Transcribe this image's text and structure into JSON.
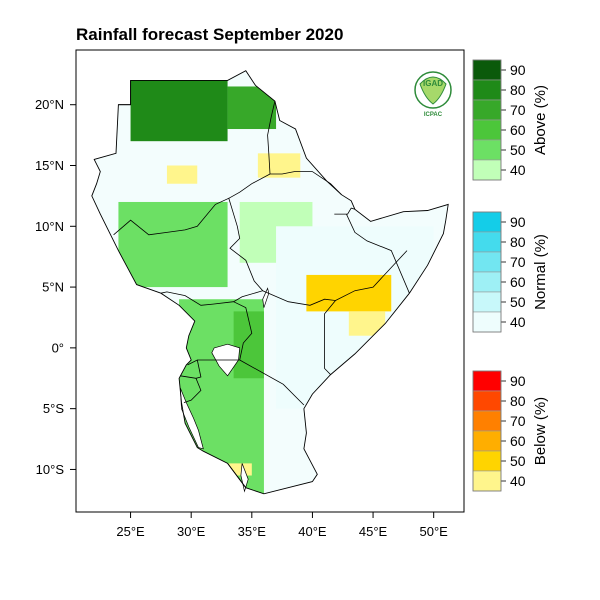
{
  "title": "Rainfall forecast September 2020",
  "logo": {
    "text_main": "IGAD",
    "text_sub": "ICPAC"
  },
  "map": {
    "lon_min": 20.5,
    "lon_max": 52.5,
    "lat_min": -13.5,
    "lat_max": 24.5,
    "x_ticks": [
      {
        "value": 25,
        "label": "25°E"
      },
      {
        "value": 30,
        "label": "30°E"
      },
      {
        "value": 35,
        "label": "35°E"
      },
      {
        "value": 40,
        "label": "40°E"
      },
      {
        "value": 45,
        "label": "45°E"
      },
      {
        "value": 50,
        "label": "50°E"
      }
    ],
    "y_ticks": [
      {
        "value": 20,
        "label": "20°N"
      },
      {
        "value": 15,
        "label": "15°N"
      },
      {
        "value": 10,
        "label": "10°N"
      },
      {
        "value": 5,
        "label": "5°N"
      },
      {
        "value": 0,
        "label": "0°"
      },
      {
        "value": -5,
        "label": "5°S"
      },
      {
        "value": -10,
        "label": "10°S"
      }
    ],
    "region_outline": [
      [
        24,
        20
      ],
      [
        25,
        20
      ],
      [
        25,
        22
      ],
      [
        31,
        22
      ],
      [
        33,
        22
      ],
      [
        34.5,
        22.8
      ],
      [
        35.3,
        21.6
      ],
      [
        36.9,
        20.3
      ],
      [
        37.3,
        18.7
      ],
      [
        38.6,
        18
      ],
      [
        39.5,
        15.6
      ],
      [
        41.2,
        13.7
      ],
      [
        42.4,
        12.6
      ],
      [
        43.2,
        12.1
      ],
      [
        43.5,
        11.4
      ],
      [
        44.8,
        10.4
      ],
      [
        47.5,
        11.2
      ],
      [
        49.5,
        11.3
      ],
      [
        51.2,
        11.8
      ],
      [
        51,
        10.5
      ],
      [
        50.8,
        9.4
      ],
      [
        49.5,
        6.8
      ],
      [
        48,
        4.5
      ],
      [
        46,
        2
      ],
      [
        43.5,
        -0.5
      ],
      [
        41.5,
        -2.2
      ],
      [
        40,
        -3.8
      ],
      [
        39.3,
        -5
      ],
      [
        39.5,
        -7
      ],
      [
        39.3,
        -8.3
      ],
      [
        40.4,
        -10.4
      ],
      [
        40,
        -11
      ],
      [
        36,
        -12
      ],
      [
        34.5,
        -11.5
      ],
      [
        33,
        -9.5
      ],
      [
        31,
        -8.5
      ],
      [
        30.5,
        -8.2
      ],
      [
        29.5,
        -6.2
      ],
      [
        29.2,
        -4.5
      ],
      [
        29,
        -2.5
      ],
      [
        29.6,
        -1.4
      ],
      [
        30,
        -1
      ],
      [
        29.6,
        0
      ],
      [
        29.8,
        1
      ],
      [
        30.3,
        2.2
      ],
      [
        29,
        3.5
      ],
      [
        27.5,
        4.5
      ],
      [
        25.5,
        5.2
      ],
      [
        24,
        8
      ],
      [
        23.5,
        9
      ],
      [
        22.5,
        11
      ],
      [
        21.8,
        12.5
      ],
      [
        22.2,
        13.5
      ],
      [
        22.5,
        14.5
      ],
      [
        22,
        15.5
      ],
      [
        23.8,
        16
      ],
      [
        24,
        20
      ]
    ],
    "borders": [
      [
        [
          24,
          20
        ],
        [
          25,
          20
        ],
        [
          25,
          22
        ]
      ],
      [
        [
          23.6,
          9.3
        ],
        [
          25,
          10.5
        ],
        [
          26.5,
          9.3
        ],
        [
          28,
          9.5
        ],
        [
          29.5,
          9.7
        ],
        [
          30.5,
          10
        ],
        [
          32,
          11.8
        ],
        [
          33.1,
          12.3
        ],
        [
          33.8,
          10
        ],
        [
          34,
          9
        ],
        [
          33.2,
          8.2
        ],
        [
          34.5,
          7.2
        ],
        [
          35.2,
          5.5
        ],
        [
          35.9,
          4.7
        ],
        [
          34.2,
          4.2
        ],
        [
          33.5,
          3.8
        ],
        [
          31.8,
          3.6
        ],
        [
          30.8,
          3.5
        ],
        [
          29.5,
          4.3
        ],
        [
          28,
          4.6
        ],
        [
          27.5,
          4.5
        ]
      ],
      [
        [
          36.9,
          20.3
        ],
        [
          36.6,
          19
        ],
        [
          36.3,
          17.5
        ],
        [
          36.4,
          16
        ],
        [
          36.5,
          14.3
        ],
        [
          37.5,
          14.3
        ],
        [
          38.5,
          14.5
        ],
        [
          40,
          14.5
        ],
        [
          41.5,
          13.5
        ],
        [
          42.4,
          12.6
        ]
      ],
      [
        [
          33.1,
          12.3
        ],
        [
          34,
          12.8
        ],
        [
          35,
          13.5
        ],
        [
          36.5,
          14.3
        ]
      ],
      [
        [
          41.8,
          11
        ],
        [
          42.9,
          11
        ],
        [
          43.2,
          11.5
        ],
        [
          43.5,
          11.4
        ]
      ],
      [
        [
          42.8,
          11
        ],
        [
          43.5,
          9.5
        ],
        [
          44.5,
          8.8
        ],
        [
          46.5,
          8
        ],
        [
          48,
          4.5
        ]
      ],
      [
        [
          35.9,
          4.7
        ],
        [
          38,
          3.8
        ],
        [
          39.8,
          3.5
        ],
        [
          41,
          4
        ],
        [
          41.9,
          3.9
        ],
        [
          41,
          2.8
        ],
        [
          41,
          -1.7
        ],
        [
          41.5,
          -2.2
        ]
      ],
      [
        [
          41.9,
          3.9
        ],
        [
          43.5,
          4.7
        ],
        [
          45,
          5
        ],
        [
          47.8,
          8
        ]
      ],
      [
        [
          33.5,
          3.8
        ],
        [
          34.5,
          3.3
        ],
        [
          35,
          1.2
        ],
        [
          34.3,
          0.4
        ],
        [
          34,
          -1
        ]
      ],
      [
        [
          34,
          -1
        ],
        [
          30.5,
          -1
        ],
        [
          29.7,
          -1.4
        ]
      ],
      [
        [
          34,
          -1
        ],
        [
          37.6,
          -3
        ],
        [
          39.3,
          -4.7
        ]
      ],
      [
        [
          30.5,
          -1
        ],
        [
          30.8,
          -2.4
        ],
        [
          30.4,
          -2.5
        ],
        [
          29.1,
          -2.3
        ]
      ],
      [
        [
          30.4,
          -2.5
        ],
        [
          30.8,
          -3.5
        ],
        [
          30,
          -4.3
        ],
        [
          29.4,
          -4.5
        ]
      ],
      [
        [
          33,
          -9.5
        ],
        [
          34.5,
          -11.5
        ]
      ]
    ],
    "lakes": [
      [
        [
          31.9,
          0
        ],
        [
          33,
          0.3
        ],
        [
          34,
          0
        ],
        [
          33.9,
          -1
        ],
        [
          33,
          -2.3
        ],
        [
          32.3,
          -1.5
        ],
        [
          31.7,
          -0.4
        ]
      ],
      [
        [
          29.1,
          -3.3
        ],
        [
          29.6,
          -4.5
        ],
        [
          30.2,
          -5.8
        ],
        [
          30.6,
          -6.8
        ],
        [
          31,
          -8.3
        ],
        [
          30.6,
          -8.2
        ],
        [
          29.8,
          -6.5
        ],
        [
          29.2,
          -5
        ]
      ],
      [
        [
          36,
          3.3
        ],
        [
          36.4,
          4.5
        ],
        [
          36.3,
          4.9
        ],
        [
          35.9,
          4.0
        ]
      ],
      [
        [
          34.2,
          -9.5
        ],
        [
          34.7,
          -10.8
        ],
        [
          34.4,
          -11.8
        ],
        [
          34.1,
          -10.5
        ]
      ]
    ],
    "forecast_zones": [
      {
        "category": "above",
        "level": 80,
        "lat": [
          17,
          22
        ],
        "lon": [
          25,
          33
        ]
      },
      {
        "category": "above",
        "level": 70,
        "lat": [
          18,
          21.5
        ],
        "lon": [
          33,
          37
        ]
      },
      {
        "category": "above",
        "level": 50,
        "lat": [
          5,
          12
        ],
        "lon": [
          24,
          33
        ]
      },
      {
        "category": "above",
        "level": 50,
        "lat": [
          -12,
          4
        ],
        "lon": [
          29,
          36
        ]
      },
      {
        "category": "above",
        "level": 60,
        "lat": [
          -2.5,
          3
        ],
        "lon": [
          33.5,
          36
        ]
      },
      {
        "category": "above",
        "level": 40,
        "lat": [
          7,
          12
        ],
        "lon": [
          34,
          40
        ]
      },
      {
        "category": "normal",
        "level": 40,
        "lat": [
          -5,
          10
        ],
        "lon": [
          37,
          50
        ]
      },
      {
        "category": "below",
        "level": 40,
        "lat": [
          14,
          16
        ],
        "lon": [
          35.5,
          39
        ]
      },
      {
        "category": "below",
        "level": 50,
        "lat": [
          3,
          6
        ],
        "lon": [
          39.5,
          46.5
        ]
      },
      {
        "category": "below",
        "level": 40,
        "lat": [
          1,
          3
        ],
        "lon": [
          43,
          46
        ]
      },
      {
        "category": "below",
        "level": 40,
        "lat": [
          13.5,
          15
        ],
        "lon": [
          28,
          30.5
        ]
      },
      {
        "category": "below",
        "level": 40,
        "lat": [
          -10.5,
          -9.5
        ],
        "lon": [
          32,
          35
        ]
      }
    ]
  },
  "colorbars": [
    {
      "id": "above",
      "title": "Above (%)",
      "levels": [
        {
          "label": "40",
          "color": "#c1ffb8"
        },
        {
          "label": "50",
          "color": "#6ce064"
        },
        {
          "label": "60",
          "color": "#4cc63a"
        },
        {
          "label": "70",
          "color": "#37a829"
        },
        {
          "label": "80",
          "color": "#1f8a18"
        },
        {
          "label": "90",
          "color": "#0b5a0b"
        }
      ]
    },
    {
      "id": "normal",
      "title": "Normal (%)",
      "levels": [
        {
          "label": "40",
          "color": "#eefdfd"
        },
        {
          "label": "50",
          "color": "#c8f8fa"
        },
        {
          "label": "60",
          "color": "#9ef0f5"
        },
        {
          "label": "70",
          "color": "#72e6f1"
        },
        {
          "label": "80",
          "color": "#44dbed"
        },
        {
          "label": "90",
          "color": "#14cde8"
        }
      ]
    },
    {
      "id": "below",
      "title": "Below (%)",
      "levels": [
        {
          "label": "40",
          "color": "#fff58c"
        },
        {
          "label": "50",
          "color": "#ffd400"
        },
        {
          "label": "60",
          "color": "#ffae00"
        },
        {
          "label": "70",
          "color": "#ff8000"
        },
        {
          "label": "80",
          "color": "#ff4800"
        },
        {
          "label": "90",
          "color": "#ff0000"
        }
      ]
    }
  ]
}
